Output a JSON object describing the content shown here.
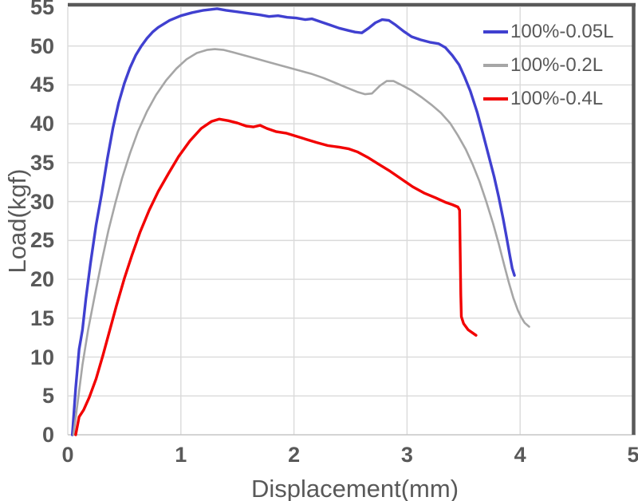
{
  "chart_data": {
    "type": "line",
    "title": "",
    "xlabel": "Displacement(mm)",
    "ylabel": "Load(kgf)",
    "xlim": [
      0,
      5
    ],
    "ylim": [
      0,
      55
    ],
    "x_ticks": [
      0,
      1,
      2,
      3,
      4,
      5
    ],
    "y_ticks": [
      0,
      5,
      10,
      15,
      20,
      25,
      30,
      35,
      40,
      45,
      50,
      55
    ],
    "grid": true,
    "legend_position": "top-right",
    "series": [
      {
        "name": "100%-0.05L",
        "color": "#4040d0",
        "stroke_width": 3.4,
        "points": [
          [
            0.04,
            0
          ],
          [
            0.07,
            6
          ],
          [
            0.1,
            11
          ],
          [
            0.13,
            13.5
          ],
          [
            0.16,
            17.5
          ],
          [
            0.2,
            22
          ],
          [
            0.25,
            27
          ],
          [
            0.3,
            31
          ],
          [
            0.35,
            35.5
          ],
          [
            0.4,
            39.5
          ],
          [
            0.45,
            42.7
          ],
          [
            0.5,
            45.2
          ],
          [
            0.55,
            47.2
          ],
          [
            0.6,
            48.8
          ],
          [
            0.65,
            50.0
          ],
          [
            0.7,
            51.0
          ],
          [
            0.75,
            51.8
          ],
          [
            0.8,
            52.4
          ],
          [
            0.9,
            53.3
          ],
          [
            1.0,
            53.9
          ],
          [
            1.1,
            54.3
          ],
          [
            1.2,
            54.6
          ],
          [
            1.32,
            54.8
          ],
          [
            1.4,
            54.6
          ],
          [
            1.5,
            54.4
          ],
          [
            1.6,
            54.2
          ],
          [
            1.7,
            54.0
          ],
          [
            1.78,
            53.8
          ],
          [
            1.86,
            53.9
          ],
          [
            1.94,
            53.7
          ],
          [
            2.02,
            53.6
          ],
          [
            2.1,
            53.4
          ],
          [
            2.16,
            53.5
          ],
          [
            2.24,
            53.1
          ],
          [
            2.32,
            52.7
          ],
          [
            2.4,
            52.3
          ],
          [
            2.48,
            52.0
          ],
          [
            2.54,
            51.8
          ],
          [
            2.6,
            51.7
          ],
          [
            2.66,
            52.3
          ],
          [
            2.72,
            53.0
          ],
          [
            2.78,
            53.4
          ],
          [
            2.84,
            53.3
          ],
          [
            2.9,
            52.7
          ],
          [
            2.97,
            51.9
          ],
          [
            3.04,
            51.2
          ],
          [
            3.12,
            50.8
          ],
          [
            3.2,
            50.5
          ],
          [
            3.28,
            50.3
          ],
          [
            3.34,
            49.8
          ],
          [
            3.4,
            48.8
          ],
          [
            3.46,
            47.6
          ],
          [
            3.51,
            46.0
          ],
          [
            3.56,
            44.2
          ],
          [
            3.62,
            41.5
          ],
          [
            3.67,
            38.8
          ],
          [
            3.72,
            36.0
          ],
          [
            3.77,
            33.2
          ],
          [
            3.81,
            30.6
          ],
          [
            3.85,
            27.8
          ],
          [
            3.88,
            25.4
          ],
          [
            3.91,
            23.0
          ],
          [
            3.93,
            21.4
          ],
          [
            3.95,
            20.5
          ]
        ]
      },
      {
        "name": "100%-0.2L",
        "color": "#a6a6a6",
        "stroke_width": 2.6,
        "points": [
          [
            0.05,
            0
          ],
          [
            0.09,
            4.5
          ],
          [
            0.13,
            9
          ],
          [
            0.18,
            13.5
          ],
          [
            0.24,
            18
          ],
          [
            0.3,
            22.3
          ],
          [
            0.36,
            26.3
          ],
          [
            0.42,
            29.8
          ],
          [
            0.48,
            33
          ],
          [
            0.55,
            36.2
          ],
          [
            0.62,
            39.0
          ],
          [
            0.7,
            41.6
          ],
          [
            0.78,
            43.7
          ],
          [
            0.87,
            45.6
          ],
          [
            0.96,
            47.1
          ],
          [
            1.05,
            48.3
          ],
          [
            1.14,
            49.1
          ],
          [
            1.23,
            49.5
          ],
          [
            1.3,
            49.6
          ],
          [
            1.38,
            49.5
          ],
          [
            1.46,
            49.2
          ],
          [
            1.56,
            48.8
          ],
          [
            1.66,
            48.4
          ],
          [
            1.76,
            48.0
          ],
          [
            1.86,
            47.6
          ],
          [
            1.96,
            47.2
          ],
          [
            2.06,
            46.8
          ],
          [
            2.16,
            46.4
          ],
          [
            2.26,
            45.9
          ],
          [
            2.36,
            45.3
          ],
          [
            2.46,
            44.7
          ],
          [
            2.56,
            44.1
          ],
          [
            2.63,
            43.8
          ],
          [
            2.69,
            43.9
          ],
          [
            2.76,
            44.9
          ],
          [
            2.82,
            45.5
          ],
          [
            2.88,
            45.5
          ],
          [
            2.95,
            45.0
          ],
          [
            3.04,
            44.3
          ],
          [
            3.13,
            43.4
          ],
          [
            3.22,
            42.4
          ],
          [
            3.3,
            41.4
          ],
          [
            3.38,
            40.1
          ],
          [
            3.45,
            38.5
          ],
          [
            3.52,
            36.7
          ],
          [
            3.58,
            34.8
          ],
          [
            3.64,
            32.6
          ],
          [
            3.7,
            30.0
          ],
          [
            3.76,
            27.2
          ],
          [
            3.81,
            24.6
          ],
          [
            3.86,
            21.8
          ],
          [
            3.9,
            19.6
          ],
          [
            3.94,
            17.6
          ],
          [
            3.98,
            16.0
          ],
          [
            4.01,
            15.1
          ],
          [
            4.04,
            14.4
          ],
          [
            4.08,
            13.9
          ]
        ]
      },
      {
        "name": "100%-0.4L",
        "color": "#f20000",
        "stroke_width": 3.4,
        "points": [
          [
            0.07,
            0
          ],
          [
            0.1,
            2.3
          ],
          [
            0.14,
            3.2
          ],
          [
            0.19,
            4.8
          ],
          [
            0.25,
            7.2
          ],
          [
            0.31,
            10.2
          ],
          [
            0.37,
            13.4
          ],
          [
            0.43,
            16.6
          ],
          [
            0.5,
            20.1
          ],
          [
            0.57,
            23.2
          ],
          [
            0.64,
            26.1
          ],
          [
            0.72,
            28.9
          ],
          [
            0.8,
            31.3
          ],
          [
            0.89,
            33.6
          ],
          [
            0.98,
            35.8
          ],
          [
            1.08,
            37.8
          ],
          [
            1.18,
            39.4
          ],
          [
            1.27,
            40.3
          ],
          [
            1.34,
            40.6
          ],
          [
            1.42,
            40.4
          ],
          [
            1.5,
            40.1
          ],
          [
            1.58,
            39.7
          ],
          [
            1.64,
            39.6
          ],
          [
            1.7,
            39.8
          ],
          [
            1.76,
            39.4
          ],
          [
            1.84,
            39.0
          ],
          [
            1.93,
            38.8
          ],
          [
            2.02,
            38.4
          ],
          [
            2.11,
            38.0
          ],
          [
            2.2,
            37.6
          ],
          [
            2.3,
            37.2
          ],
          [
            2.4,
            37.0
          ],
          [
            2.48,
            36.8
          ],
          [
            2.56,
            36.4
          ],
          [
            2.65,
            35.7
          ],
          [
            2.75,
            34.8
          ],
          [
            2.85,
            33.9
          ],
          [
            2.95,
            32.9
          ],
          [
            3.05,
            31.9
          ],
          [
            3.15,
            31.1
          ],
          [
            3.25,
            30.5
          ],
          [
            3.34,
            29.9
          ],
          [
            3.4,
            29.6
          ],
          [
            3.45,
            29.3
          ],
          [
            3.465,
            28.9
          ],
          [
            3.47,
            24.0
          ],
          [
            3.475,
            18.0
          ],
          [
            3.48,
            15.2
          ],
          [
            3.5,
            14.3
          ],
          [
            3.54,
            13.5
          ],
          [
            3.58,
            13.1
          ],
          [
            3.61,
            12.8
          ]
        ]
      }
    ]
  },
  "colors": {
    "text": "#595959",
    "grid": "#dadada",
    "border_dark": "#595959",
    "axis_light": "#c6c6c6"
  }
}
